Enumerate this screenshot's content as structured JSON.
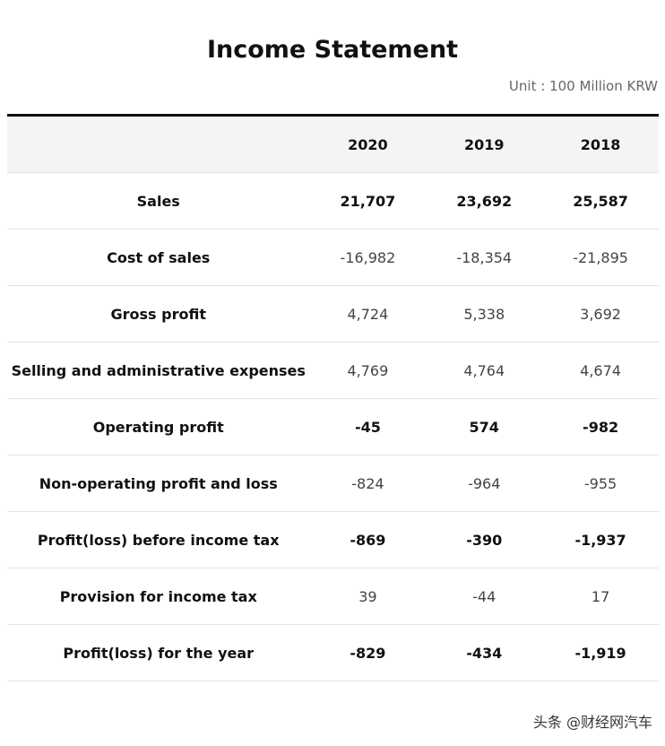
{
  "header": {
    "title": "Income Statement",
    "unit": "Unit : 100 Million KRW"
  },
  "table": {
    "columns": [
      "2020",
      "2019",
      "2018"
    ],
    "rows": [
      [
        "Sales",
        "21,707",
        "23,692",
        "25,587"
      ],
      [
        "Cost of sales",
        "-16,982",
        "-18,354",
        "-21,895"
      ],
      [
        "Gross profit",
        "4,724",
        "5,338",
        "3,692"
      ],
      [
        "Selling and administrative expenses",
        "4,769",
        "4,764",
        "4,674"
      ],
      [
        "Operating profit",
        "-45",
        "574",
        "-982"
      ],
      [
        "Non-operating profit and loss",
        "-824",
        "-964",
        "-955"
      ],
      [
        "Profit(loss) before income tax",
        "-869",
        "-390",
        "-1,937"
      ],
      [
        "Provision for income tax",
        "39",
        "-44",
        "17"
      ],
      [
        "Profit(loss) for the year",
        "-829",
        "-434",
        "-1,919"
      ]
    ]
  },
  "watermark": "头条 @财经网汽车"
}
